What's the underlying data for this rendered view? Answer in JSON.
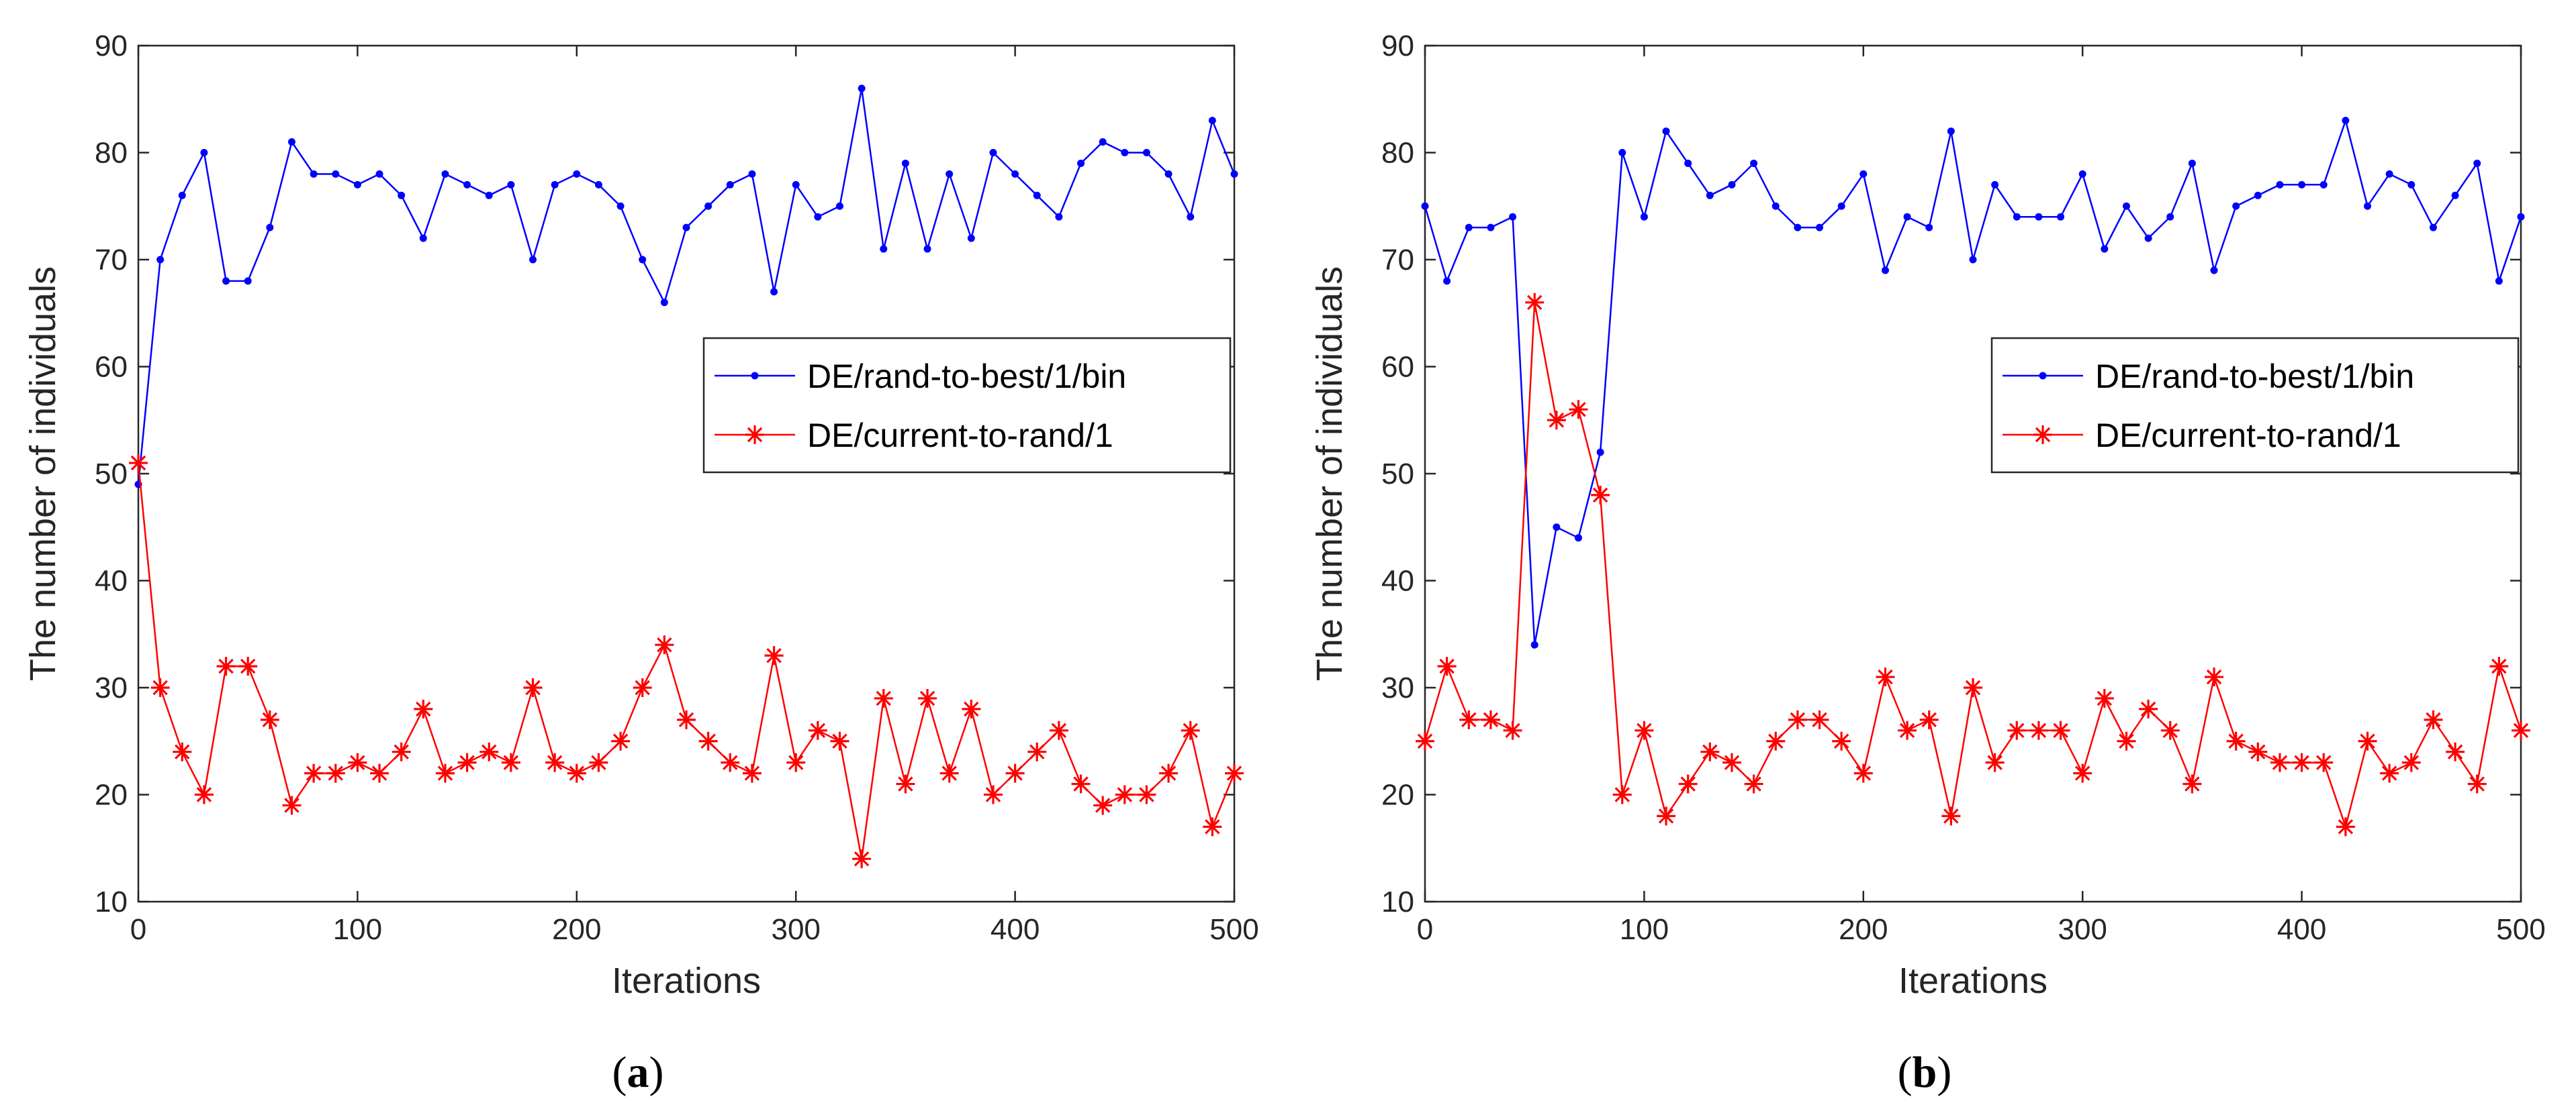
{
  "colors": {
    "series_blue": "#0000ff",
    "series_red": "#ff0000",
    "axis": "#262626",
    "background": "#ffffff"
  },
  "chart_data": [
    {
      "panel": "a",
      "caption_open": "(",
      "caption_letter": "a",
      "caption_close": ")",
      "type": "line",
      "xlabel": "Iterations",
      "ylabel": "The number of individuals",
      "xlim": [
        0,
        500
      ],
      "ylim": [
        10,
        90
      ],
      "xticks": [
        0,
        100,
        200,
        300,
        400,
        500
      ],
      "yticks": [
        10,
        20,
        30,
        40,
        50,
        60,
        70,
        80,
        90
      ],
      "legend_position": "center-right",
      "x": [
        0,
        10,
        20,
        30,
        40,
        50,
        60,
        70,
        80,
        90,
        100,
        110,
        120,
        130,
        140,
        150,
        160,
        170,
        180,
        190,
        200,
        210,
        220,
        230,
        240,
        250,
        260,
        270,
        280,
        290,
        300,
        310,
        320,
        330,
        340,
        350,
        360,
        370,
        380,
        390,
        400,
        410,
        420,
        430,
        440,
        450,
        460,
        470,
        480,
        490,
        500
      ],
      "series": [
        {
          "name": "DE/rand-to-best/1/bin",
          "color": "#0000ff",
          "marker": "dot",
          "values": [
            49,
            70,
            76,
            80,
            68,
            68,
            73,
            81,
            78,
            78,
            77,
            78,
            76,
            72,
            78,
            77,
            76,
            77,
            70,
            77,
            78,
            77,
            75,
            70,
            66,
            73,
            75,
            77,
            78,
            67,
            77,
            74,
            75,
            86,
            71,
            79,
            71,
            78,
            72,
            80,
            78,
            76,
            74,
            79,
            81,
            80,
            80,
            78,
            74,
            83,
            78
          ]
        },
        {
          "name": "DE/current-to-rand/1",
          "color": "#ff0000",
          "marker": "asterisk",
          "values": [
            51,
            30,
            24,
            20,
            32,
            32,
            27,
            19,
            22,
            22,
            23,
            22,
            24,
            28,
            22,
            23,
            24,
            23,
            30,
            23,
            22,
            23,
            25,
            30,
            34,
            27,
            25,
            23,
            22,
            33,
            23,
            26,
            25,
            14,
            29,
            21,
            29,
            22,
            28,
            20,
            22,
            24,
            26,
            21,
            19,
            20,
            20,
            22,
            26,
            17,
            22
          ]
        }
      ]
    },
    {
      "panel": "b",
      "caption_open": "(",
      "caption_letter": "b",
      "caption_close": ")",
      "type": "line",
      "xlabel": "Iterations",
      "ylabel": "The number of individuals",
      "xlim": [
        0,
        500
      ],
      "ylim": [
        10,
        90
      ],
      "xticks": [
        0,
        100,
        200,
        300,
        400,
        500
      ],
      "yticks": [
        10,
        20,
        30,
        40,
        50,
        60,
        70,
        80,
        90
      ],
      "legend_position": "center-right",
      "x": [
        0,
        10,
        20,
        30,
        40,
        50,
        60,
        70,
        80,
        90,
        100,
        110,
        120,
        130,
        140,
        150,
        160,
        170,
        180,
        190,
        200,
        210,
        220,
        230,
        240,
        250,
        260,
        270,
        280,
        290,
        300,
        310,
        320,
        330,
        340,
        350,
        360,
        370,
        380,
        390,
        400,
        410,
        420,
        430,
        440,
        450,
        460,
        470,
        480,
        490,
        500
      ],
      "series": [
        {
          "name": "DE/rand-to-best/1/bin",
          "color": "#0000ff",
          "marker": "dot",
          "values": [
            75,
            68,
            73,
            73,
            74,
            34,
            45,
            44,
            52,
            80,
            74,
            82,
            79,
            76,
            77,
            79,
            75,
            73,
            73,
            75,
            78,
            69,
            74,
            73,
            82,
            70,
            77,
            74,
            74,
            74,
            78,
            71,
            75,
            72,
            74,
            79,
            69,
            75,
            76,
            77,
            77,
            77,
            83,
            75,
            78,
            77,
            73,
            76,
            79,
            68,
            74
          ]
        },
        {
          "name": "DE/current-to-rand/1",
          "color": "#ff0000",
          "marker": "asterisk",
          "values": [
            25,
            32,
            27,
            27,
            26,
            66,
            55,
            56,
            48,
            20,
            26,
            18,
            21,
            24,
            23,
            21,
            25,
            27,
            27,
            25,
            22,
            31,
            26,
            27,
            18,
            30,
            23,
            26,
            26,
            26,
            22,
            29,
            25,
            28,
            26,
            21,
            31,
            25,
            24,
            23,
            23,
            23,
            17,
            25,
            22,
            23,
            27,
            24,
            21,
            32,
            26
          ]
        }
      ]
    }
  ]
}
